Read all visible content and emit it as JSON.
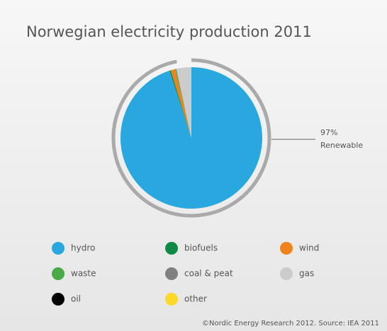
{
  "chart_data": {
    "type": "pie",
    "title": "Norwegian electricity production 2011",
    "categories": [
      "hydro",
      "biofuels",
      "wind",
      "waste",
      "coal & peat",
      "gas",
      "oil",
      "other"
    ],
    "values": [
      95,
      0.3,
      1,
      0.2,
      0.1,
      3.4,
      0,
      0
    ],
    "colors": [
      "#29a8e0",
      "#0f8a46",
      "#f0821e",
      "#4aaa48",
      "#808080",
      "#cccccc",
      "#000000",
      "#fcd829"
    ],
    "annotation": {
      "value": 97,
      "label": "97%"
    },
    "annotation_text": "Renewable",
    "source": "©Nordic Energy Research 2012. Source: IEA 2011"
  }
}
